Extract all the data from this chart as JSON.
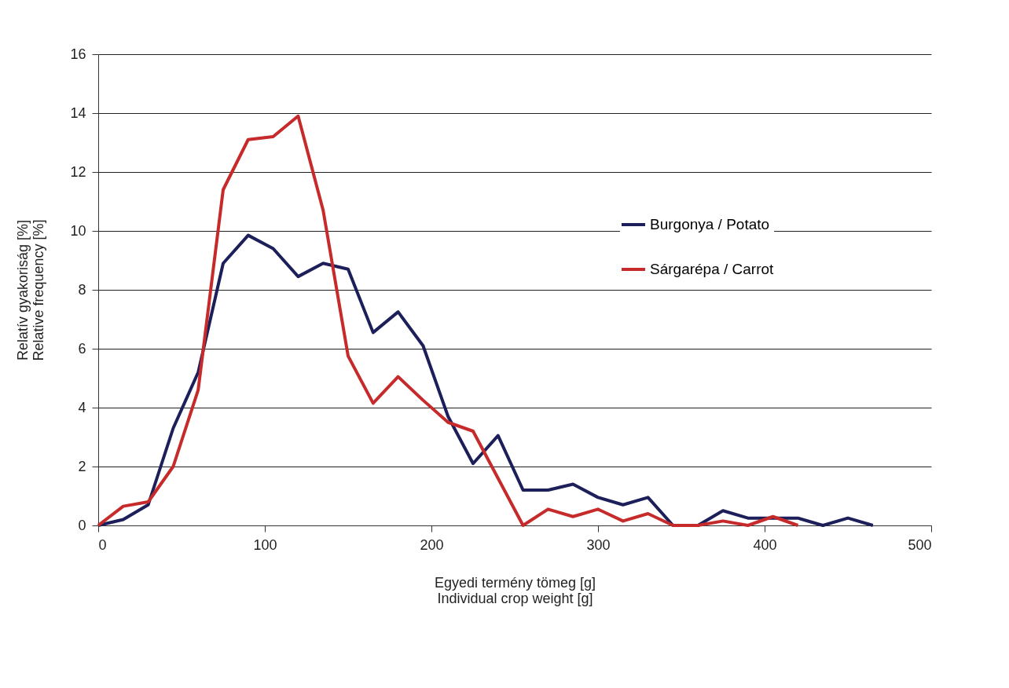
{
  "chart_data": {
    "type": "line",
    "xlabel": "Egyedi termény tömeg [g]\nIndividual crop weight [g]",
    "ylabel": "Relatív gyakoriság [%]\nRelative frequency [%]",
    "x": [
      0,
      15,
      30,
      45,
      60,
      75,
      90,
      105,
      120,
      135,
      150,
      165,
      180,
      195,
      210,
      225,
      240,
      255,
      270,
      285,
      300,
      315,
      330,
      345,
      360,
      375,
      390,
      405,
      420,
      435,
      450,
      465
    ],
    "series": [
      {
        "name": "Burgonya / Potato",
        "color": "#1c1f5a",
        "values": [
          0,
          0.2,
          0.7,
          3.3,
          5.2,
          8.9,
          9.85,
          9.4,
          8.45,
          8.9,
          8.7,
          6.55,
          7.25,
          6.1,
          3.7,
          2.1,
          3.05,
          1.2,
          1.2,
          1.4,
          0.95,
          0.7,
          0.95,
          0,
          0,
          0.5,
          0.25,
          0.25,
          0.25,
          0,
          0.25,
          0
        ]
      },
      {
        "name": "Sárgarépa / Carrot",
        "color": "#c62a2a",
        "values": [
          0,
          0.65,
          0.8,
          2.0,
          4.6,
          11.4,
          13.1,
          13.2,
          13.9,
          10.7,
          5.75,
          4.15,
          5.05,
          4.25,
          3.5,
          3.2,
          1.6,
          0,
          0.55,
          0.3,
          0.55,
          0.15,
          0.4,
          0,
          0,
          0.15,
          0,
          0.3,
          0,
          null,
          null,
          null
        ]
      }
    ],
    "xlim": [
      0,
      500
    ],
    "xticks": [
      0,
      100,
      200,
      300,
      400,
      500
    ],
    "ylim": [
      0,
      16
    ],
    "yticks": [
      0,
      2,
      4,
      6,
      8,
      10,
      12,
      14,
      16
    ],
    "grid": "y",
    "legend": "top right",
    "marker": "none",
    "line_style": "solid"
  }
}
